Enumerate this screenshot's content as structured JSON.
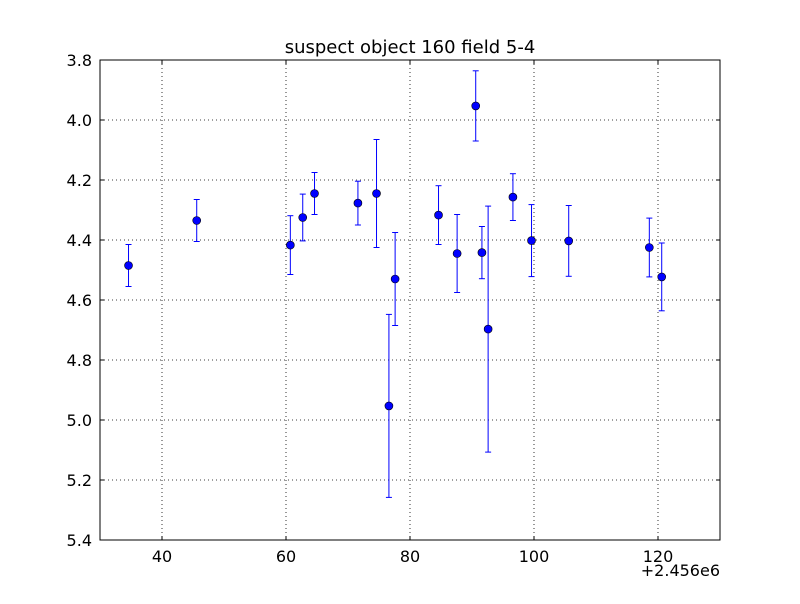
{
  "chart_data": {
    "type": "scatter",
    "title": "suspect object 160 field 5-4",
    "xlabel": "",
    "ylabel": "",
    "x_offset_label": "+2.456e6",
    "xlim": [
      2456030,
      2456130
    ],
    "ylim": [
      3.8,
      5.4
    ],
    "y_inverted": true,
    "grid": true,
    "x_ticks": [
      2456040,
      2456060,
      2456080,
      2456100,
      2456120
    ],
    "x_tick_labels": [
      "40",
      "60",
      "80",
      "100",
      "120"
    ],
    "y_ticks": [
      3.8,
      4.0,
      4.2,
      4.4,
      4.6,
      4.8,
      5.0,
      5.2,
      5.4
    ],
    "y_tick_labels": [
      "3.8",
      "4.0",
      "4.2",
      "4.4",
      "4.6",
      "4.8",
      "5.0",
      "5.2",
      "5.4"
    ],
    "series": [
      {
        "color": "#0000ff",
        "marker": "circle",
        "points": [
          {
            "x": 2456034.6,
            "y": 4.485,
            "err": 0.07
          },
          {
            "x": 2456045.6,
            "y": 4.335,
            "err": 0.07
          },
          {
            "x": 2456060.7,
            "y": 4.417,
            "err": 0.098
          },
          {
            "x": 2456062.7,
            "y": 4.325,
            "err": 0.078
          },
          {
            "x": 2456064.6,
            "y": 4.245,
            "err": 0.07
          },
          {
            "x": 2456071.6,
            "y": 4.277,
            "err": 0.073
          },
          {
            "x": 2456074.6,
            "y": 4.245,
            "err": 0.18
          },
          {
            "x": 2456076.6,
            "y": 4.953,
            "err": 0.305
          },
          {
            "x": 2456077.6,
            "y": 4.53,
            "err": 0.155
          },
          {
            "x": 2456084.6,
            "y": 4.317,
            "err": 0.098
          },
          {
            "x": 2456087.6,
            "y": 4.445,
            "err": 0.13
          },
          {
            "x": 2456090.6,
            "y": 3.953,
            "err": 0.117
          },
          {
            "x": 2456091.6,
            "y": 4.442,
            "err": 0.087
          },
          {
            "x": 2456092.6,
            "y": 4.697,
            "err": 0.41
          },
          {
            "x": 2456096.6,
            "y": 4.257,
            "err": 0.078
          },
          {
            "x": 2456099.6,
            "y": 4.402,
            "err": 0.12
          },
          {
            "x": 2456105.6,
            "y": 4.403,
            "err": 0.118
          },
          {
            "x": 2456118.6,
            "y": 4.425,
            "err": 0.098
          },
          {
            "x": 2456120.6,
            "y": 4.523,
            "err": 0.113
          }
        ]
      }
    ]
  }
}
